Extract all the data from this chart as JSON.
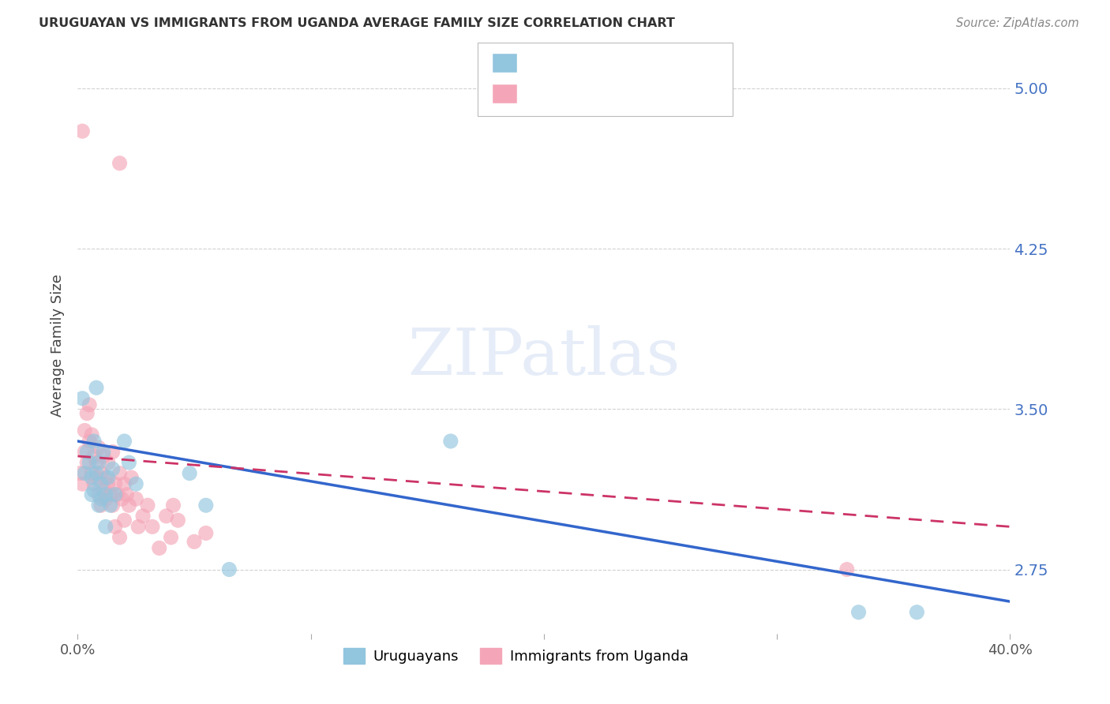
{
  "title": "URUGUAYAN VS IMMIGRANTS FROM UGANDA AVERAGE FAMILY SIZE CORRELATION CHART",
  "source": "Source: ZipAtlas.com",
  "ylabel": "Average Family Size",
  "xlim": [
    0.0,
    0.4
  ],
  "ylim": [
    2.45,
    5.15
  ],
  "yticks_right": [
    2.75,
    3.5,
    4.25,
    5.0
  ],
  "blue_color": "#92c5de",
  "pink_color": "#f4a6b8",
  "blue_line_color": "#3366cc",
  "pink_line_color": "#cc3366",
  "watermark": "ZIPatlas",
  "background_color": "#ffffff",
  "grid_color": "#cccccc",
  "uruguayan_x": [
    0.002,
    0.003,
    0.004,
    0.005,
    0.006,
    0.006,
    0.007,
    0.007,
    0.008,
    0.009,
    0.009,
    0.01,
    0.01,
    0.011,
    0.012,
    0.012,
    0.013,
    0.014,
    0.015,
    0.016,
    0.02,
    0.025,
    0.048,
    0.055,
    0.065,
    0.16,
    0.335,
    0.36,
    0.008,
    0.022
  ],
  "uruguayan_y": [
    3.55,
    3.2,
    3.3,
    3.25,
    3.18,
    3.1,
    3.35,
    3.12,
    3.2,
    3.05,
    3.25,
    3.15,
    3.08,
    3.3,
    3.1,
    2.95,
    3.18,
    3.05,
    3.22,
    3.1,
    3.35,
    3.15,
    3.2,
    3.05,
    2.75,
    3.35,
    2.55,
    2.55,
    3.6,
    3.25
  ],
  "uganda_x": [
    0.001,
    0.002,
    0.003,
    0.003,
    0.004,
    0.004,
    0.005,
    0.005,
    0.006,
    0.006,
    0.007,
    0.007,
    0.008,
    0.008,
    0.009,
    0.009,
    0.01,
    0.01,
    0.011,
    0.011,
    0.012,
    0.012,
    0.013,
    0.013,
    0.014,
    0.015,
    0.015,
    0.016,
    0.016,
    0.017,
    0.018,
    0.018,
    0.019,
    0.02,
    0.02,
    0.021,
    0.022,
    0.023,
    0.025,
    0.026,
    0.028,
    0.03,
    0.032,
    0.035,
    0.038,
    0.04,
    0.041,
    0.043,
    0.05,
    0.055,
    0.002,
    0.018,
    0.33
  ],
  "uganda_y": [
    3.2,
    3.15,
    3.3,
    3.4,
    3.25,
    3.48,
    3.35,
    3.52,
    3.2,
    3.38,
    3.15,
    3.28,
    3.25,
    3.18,
    3.1,
    3.32,
    3.2,
    3.05,
    3.28,
    3.12,
    3.18,
    3.08,
    3.25,
    3.15,
    3.1,
    3.3,
    3.05,
    3.15,
    2.95,
    3.1,
    2.9,
    3.2,
    3.08,
    3.15,
    2.98,
    3.1,
    3.05,
    3.18,
    3.08,
    2.95,
    3.0,
    3.05,
    2.95,
    2.85,
    3.0,
    2.9,
    3.05,
    2.98,
    2.88,
    2.92,
    4.8,
    4.65,
    2.75
  ]
}
